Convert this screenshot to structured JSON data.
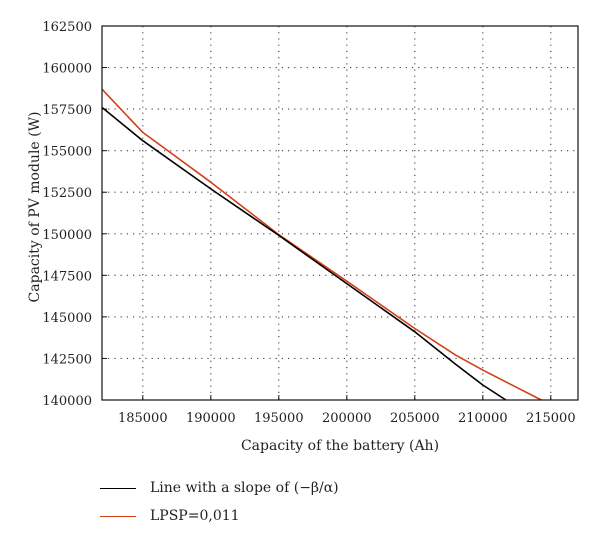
{
  "chart_data": {
    "type": "line",
    "title": "",
    "xlabel": "Capacity of the battery (Ah)",
    "ylabel": "Capacity of PV module (W)",
    "xlim": [
      182000,
      217000
    ],
    "ylim": [
      140000,
      162500
    ],
    "x_ticks": [
      185000,
      190000,
      195000,
      200000,
      205000,
      210000,
      215000
    ],
    "y_ticks": [
      140000,
      142500,
      145000,
      147500,
      150000,
      152500,
      155000,
      157500,
      160000,
      162500
    ],
    "grid": true,
    "legend_position": "bottom",
    "series": [
      {
        "name": "Line with a slope of (−β/α)",
        "color": "#000000",
        "x": [
          182000,
          185000,
          190000,
          195000,
          200000,
          205000,
          208000,
          210000,
          211700
        ],
        "y": [
          157600,
          155600,
          152700,
          149900,
          147000,
          144100,
          142150,
          140900,
          140000
        ]
      },
      {
        "name": "LPSP=0,011",
        "color": "#d2401a",
        "x": [
          182000,
          185000,
          190000,
          195000,
          200000,
          205000,
          208000,
          210000,
          214300
        ],
        "y": [
          158700,
          156100,
          153100,
          149950,
          147150,
          144300,
          142700,
          141800,
          140000
        ]
      }
    ]
  }
}
